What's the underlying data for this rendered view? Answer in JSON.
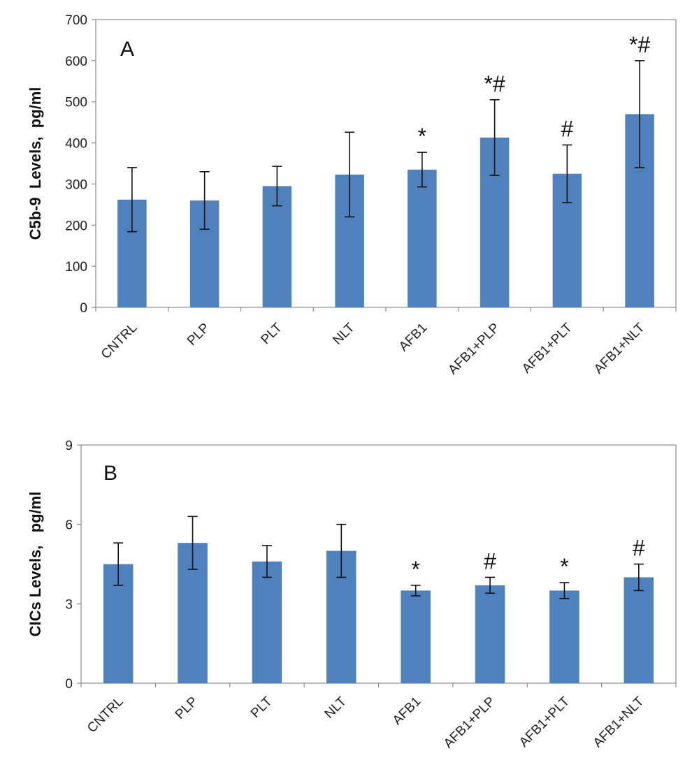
{
  "chart_data": [
    {
      "type": "bar",
      "panel_label": "A",
      "ylabel": "C5b-9  Levels,  pg/ml",
      "xlabel": "",
      "ylim": [
        0,
        700
      ],
      "yticks": [
        0,
        100,
        200,
        300,
        400,
        500,
        600,
        700
      ],
      "categories": [
        "CNTRL",
        "PLP",
        "PLT",
        "NLT",
        "AFB1",
        "AFB1+PLP",
        "AFB1+PLT",
        "AFB1+NLT"
      ],
      "values": [
        262,
        260,
        295,
        323,
        335,
        413,
        325,
        470
      ],
      "error": [
        78,
        70,
        48,
        103,
        42,
        92,
        70,
        130
      ],
      "annotations": [
        "",
        "",
        "",
        "",
        "*",
        "*#",
        "#",
        "*#"
      ],
      "color": "#4F81BD",
      "grid": false
    },
    {
      "type": "bar",
      "panel_label": "B",
      "ylabel": "CICs Levels,   pg/ml",
      "xlabel": "",
      "ylim": [
        0,
        9
      ],
      "yticks": [
        0,
        3,
        6,
        9
      ],
      "categories": [
        "CNTRL",
        "PLP",
        "PLT",
        "NLT",
        "AFB1",
        "AFB1+PLP",
        "AFB1+PLT",
        "AFB1+NLT"
      ],
      "values": [
        4.5,
        5.3,
        4.6,
        5.0,
        3.5,
        3.7,
        3.5,
        4.0
      ],
      "error": [
        0.8,
        1.0,
        0.6,
        1.0,
        0.2,
        0.3,
        0.3,
        0.5
      ],
      "annotations": [
        "",
        "",
        "",
        "",
        "*",
        "#",
        "*",
        "#"
      ],
      "color": "#4F81BD",
      "grid": false
    }
  ]
}
